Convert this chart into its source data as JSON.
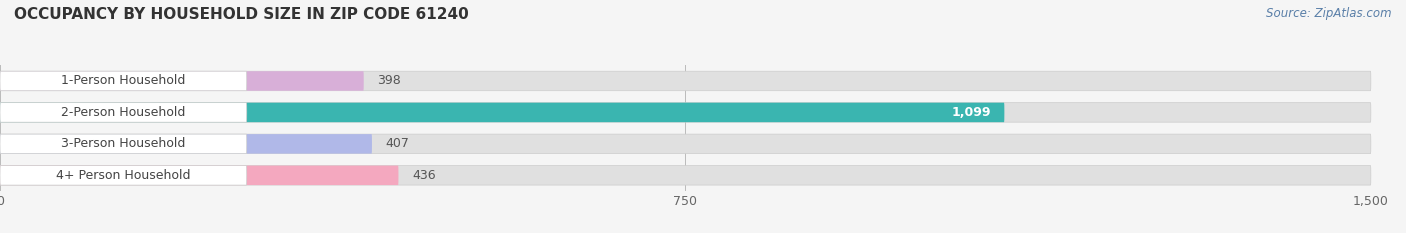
{
  "title": "OCCUPANCY BY HOUSEHOLD SIZE IN ZIP CODE 61240",
  "source": "Source: ZipAtlas.com",
  "categories": [
    "1-Person Household",
    "2-Person Household",
    "3-Person Household",
    "4+ Person Household"
  ],
  "values": [
    398,
    1099,
    407,
    436
  ],
  "bar_colors": [
    "#d8afd8",
    "#3ab5b0",
    "#b0b8e8",
    "#f4a8bf"
  ],
  "label_colors": [
    "#555555",
    "#ffffff",
    "#555555",
    "#555555"
  ],
  "xlim": [
    0,
    1500
  ],
  "xticks": [
    0,
    750,
    1500
  ],
  "background_color": "#f5f5f5",
  "bar_background_color": "#e0e0e0",
  "title_fontsize": 11,
  "label_fontsize": 9,
  "value_fontsize": 9,
  "source_fontsize": 8.5,
  "bar_height": 0.62
}
